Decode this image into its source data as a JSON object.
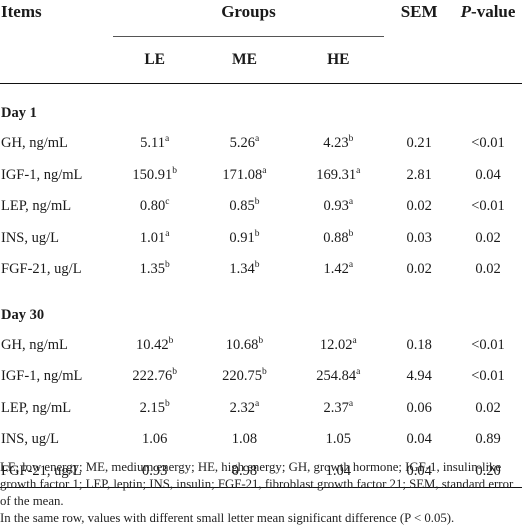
{
  "headers": {
    "items": "Items",
    "groups": "Groups",
    "sem": "SEM",
    "pvalue_italic": "P",
    "pvalue_rest": "-value",
    "le": "LE",
    "me": "ME",
    "he": "HE"
  },
  "sections": [
    {
      "title": "Day 1",
      "rows": [
        {
          "item": "GH, ng/mL",
          "le": "5.11",
          "le_sup": "a",
          "me": "5.26",
          "me_sup": "a",
          "he": "4.23",
          "he_sup": "b",
          "sem": "0.21",
          "p": "<0.01"
        },
        {
          "item": "IGF-1, ng/mL",
          "le": "150.91",
          "le_sup": "b",
          "me": "171.08",
          "me_sup": "a",
          "he": "169.31",
          "he_sup": "a",
          "sem": "2.81",
          "p": "0.04"
        },
        {
          "item": "LEP, ng/mL",
          "le": "0.80",
          "le_sup": "c",
          "me": "0.85",
          "me_sup": "b",
          "he": "0.93",
          "he_sup": "a",
          "sem": "0.02",
          "p": "<0.01"
        },
        {
          "item": "INS, ug/L",
          "le": "1.01",
          "le_sup": "a",
          "me": "0.91",
          "me_sup": "b",
          "he": "0.88",
          "he_sup": "b",
          "sem": "0.03",
          "p": "0.02"
        },
        {
          "item": "FGF-21, ug/L",
          "le": "1.35",
          "le_sup": "b",
          "me": "1.34",
          "me_sup": "b",
          "he": "1.42",
          "he_sup": "a",
          "sem": "0.02",
          "p": "0.02"
        }
      ]
    },
    {
      "title": "Day 30",
      "rows": [
        {
          "item": "GH, ng/mL",
          "le": "10.42",
          "le_sup": "b",
          "me": "10.68",
          "me_sup": "b",
          "he": "12.02",
          "he_sup": "a",
          "sem": "0.18",
          "p": "<0.01"
        },
        {
          "item": "IGF-1, ng/mL",
          "le": "222.76",
          "le_sup": "b",
          "me": "220.75",
          "me_sup": "b",
          "he": "254.84",
          "he_sup": "a",
          "sem": "4.94",
          "p": "<0.01"
        },
        {
          "item": "LEP, ng/mL",
          "le": "2.15",
          "le_sup": "b",
          "me": "2.32",
          "me_sup": "a",
          "he": "2.37",
          "he_sup": "a",
          "sem": "0.06",
          "p": "0.02"
        },
        {
          "item": "INS, ug/L",
          "le": "1.06",
          "le_sup": "",
          "me": "1.08",
          "me_sup": "",
          "he": "1.05",
          "he_sup": "",
          "sem": "0.04",
          "p": "0.89"
        },
        {
          "item": "FGF-21, ug/L",
          "le": "0.93",
          "le_sup": "",
          "me": "0.98",
          "me_sup": "",
          "he": "1.04",
          "he_sup": "",
          "sem": "0.04",
          "p": "0.20"
        }
      ]
    }
  ],
  "footnotes": {
    "abbreviations": "LE, low energy; ME, medium energy; HE, high energy; GH, growth hormone; IGF-1, insulin-like growth factor 1; LEP, leptin; INS, insulin; FGF-21, fibroblast growth factor 21; SEM, standard error of the mean.",
    "significance": "In the same row, values with different small letter mean significant difference (P < 0.05)."
  }
}
